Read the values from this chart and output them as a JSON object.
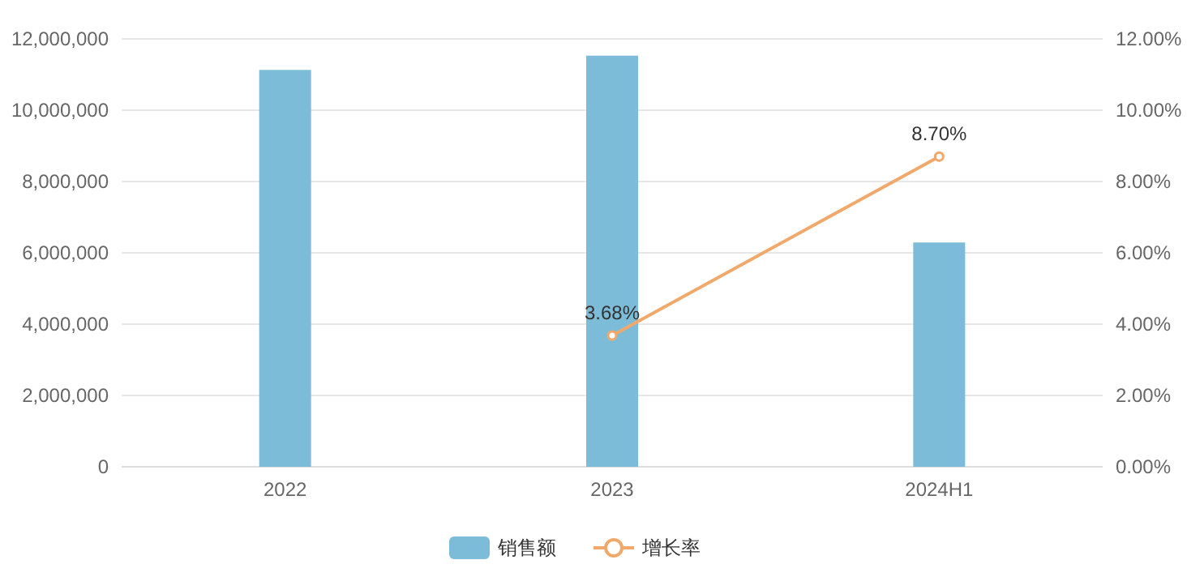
{
  "chart_data": {
    "type": "bar",
    "categories": [
      "2022",
      "2023",
      "2024H1"
    ],
    "series": [
      {
        "name": "销售额",
        "color": "#7dbcd9",
        "values": [
          11130000,
          11530000,
          6290000
        ]
      },
      {
        "name": "增长率",
        "color": "#f0a96a",
        "type": "line",
        "axis": "y2",
        "marker": "circle",
        "values": [
          null,
          3.68,
          8.7
        ],
        "value_labels": [
          null,
          "3.68%",
          "8.70%"
        ]
      }
    ],
    "ylim": [
      0,
      12000000
    ],
    "yticks": [
      {
        "value": 0,
        "label": "0"
      },
      {
        "value": 2000000,
        "label": "2,000,000"
      },
      {
        "value": 4000000,
        "label": "4,000,000"
      },
      {
        "value": 6000000,
        "label": "6,000,000"
      },
      {
        "value": 8000000,
        "label": "8,000,000"
      },
      {
        "value": 10000000,
        "label": "10,000,000"
      },
      {
        "value": 12000000,
        "label": "12,000,000"
      }
    ],
    "y2lim": [
      0,
      12
    ],
    "y2ticks": [
      {
        "value": 0,
        "label": "0.00%"
      },
      {
        "value": 2,
        "label": "2.00%"
      },
      {
        "value": 4,
        "label": "4.00%"
      },
      {
        "value": 6,
        "label": "6.00%"
      },
      {
        "value": 8,
        "label": "8.00%"
      },
      {
        "value": 10,
        "label": "10.00%"
      },
      {
        "value": 12,
        "label": "12.00%"
      }
    ],
    "grid": "y",
    "legend": "bottom"
  }
}
